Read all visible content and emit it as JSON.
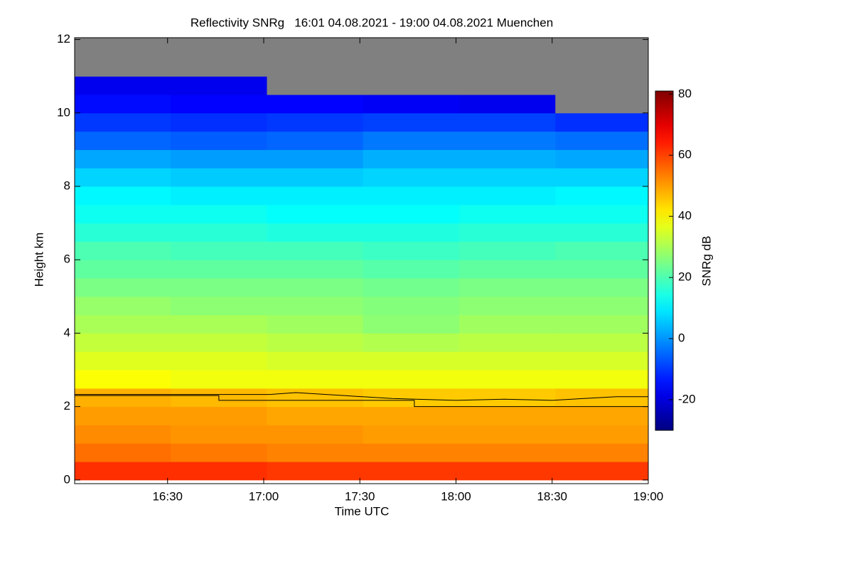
{
  "chart_data": {
    "type": "heatmap",
    "title": "Reflectivity SNRg   16:01 04.08.2021 - 19:00 04.08.2021 Muenchen",
    "x_label": "Time UTC",
    "y_label": "Height km",
    "colorbar_label": "SNRg dB",
    "x": [
      961,
      991,
      1021,
      1051,
      1081,
      1111,
      1140
    ],
    "y": [
      0,
      0.5,
      1,
      1.5,
      2,
      2.5,
      3,
      3.5,
      4,
      4.5,
      5,
      5.5,
      6,
      6.5,
      7,
      7.5,
      8,
      8.5,
      9,
      9.5,
      10,
      10.5,
      11,
      11.5,
      12.05
    ],
    "z": [
      [
        62,
        62,
        61,
        61,
        61,
        61
      ],
      [
        55,
        54,
        53,
        53,
        53,
        53
      ],
      [
        52,
        51,
        51,
        50,
        50,
        50
      ],
      [
        50,
        50,
        49,
        49,
        49,
        49
      ],
      [
        48,
        47,
        46,
        45,
        45,
        46
      ],
      [
        39,
        38,
        38,
        38,
        38,
        38
      ],
      [
        36,
        36,
        35,
        35,
        35,
        35
      ],
      [
        33,
        33,
        32,
        31,
        32,
        32
      ],
      [
        30,
        30,
        29,
        27,
        29,
        29
      ],
      [
        28,
        27,
        27,
        26,
        27,
        27
      ],
      [
        25,
        25,
        25,
        24,
        25,
        25
      ],
      [
        22,
        22,
        22,
        21,
        22,
        22
      ],
      [
        20,
        19,
        19,
        18,
        19,
        20
      ],
      [
        16,
        16,
        15,
        15,
        16,
        16
      ],
      [
        13,
        13,
        12,
        12,
        13,
        13
      ],
      [
        11,
        10,
        10,
        10,
        10,
        11
      ],
      [
        7,
        6,
        6,
        7,
        7,
        7
      ],
      [
        2,
        1,
        1,
        3,
        3,
        2
      ],
      [
        -5,
        -6,
        -5,
        -3,
        -3,
        -4
      ],
      [
        -10,
        -11,
        -10,
        -9,
        -9,
        -11
      ],
      [
        -15,
        -16,
        -16,
        -17,
        -18,
        null
      ],
      [
        -18,
        -18,
        null,
        null,
        null,
        null
      ],
      [
        null,
        null,
        null,
        null,
        null,
        null
      ],
      [
        null,
        null,
        null,
        null,
        null,
        null
      ]
    ],
    "lines": [
      {
        "color": "#000000",
        "x": [
          961,
          1022,
          1030,
          1045,
          1060,
          1080,
          1095,
          1110,
          1120,
          1130,
          1140
        ],
        "values": [
          2.33,
          2.33,
          2.38,
          2.3,
          2.22,
          2.17,
          2.2,
          2.17,
          2.22,
          2.27,
          2.27
        ]
      },
      {
        "color": "#000000",
        "x": [
          961,
          1006,
          1006,
          1067,
          1067,
          1140
        ],
        "values": [
          2.3,
          2.3,
          2.17,
          2.17,
          2.0,
          2.0
        ]
      }
    ],
    "missing_color": "#808080",
    "colormap": "jet",
    "xlim": [
      961,
      1140
    ],
    "ylim": [
      -0.1,
      12.05
    ],
    "clim": [
      -30,
      81
    ],
    "xticks": [
      {
        "value": 990,
        "label": "16:30"
      },
      {
        "value": 1020,
        "label": "17:00"
      },
      {
        "value": 1050,
        "label": "17:30"
      },
      {
        "value": 1080,
        "label": "18:00"
      },
      {
        "value": 1110,
        "label": "18:30"
      },
      {
        "value": 1140,
        "label": "19:00"
      }
    ],
    "yticks": [
      0,
      2,
      4,
      6,
      8,
      10,
      12
    ],
    "cticks": [
      -20,
      0,
      20,
      40,
      60,
      80
    ]
  }
}
